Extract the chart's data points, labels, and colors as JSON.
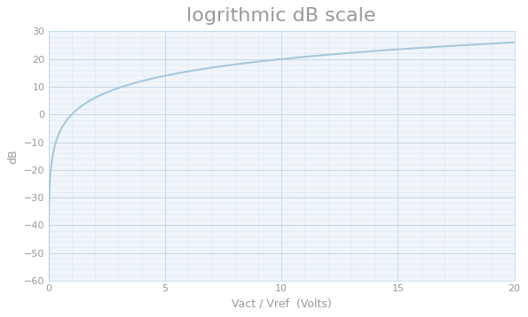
{
  "title": "logrithmic dB scale",
  "xlabel": "Vact / Vref  (Volts)",
  "ylabel": "dB",
  "xlim": [
    0,
    20
  ],
  "ylim": [
    -60,
    30
  ],
  "xticks": [
    0,
    5,
    10,
    15,
    20
  ],
  "yticks": [
    -60,
    -50,
    -40,
    -30,
    -20,
    -10,
    0,
    10,
    20,
    30
  ],
  "line_color": "#a8c8dc",
  "line_width": 1.5,
  "major_grid_color": "#c5d8e8",
  "minor_grid_color": "#dce8f0",
  "major_grid_linewidth": 0.7,
  "minor_grid_linewidth": 0.4,
  "bg_color": "#ffffff",
  "plot_bg_color": "#f0f5fa",
  "title_color": "#999999",
  "label_color": "#999999",
  "tick_color": "#999999",
  "spine_color": "#c5d8e8",
  "title_fontsize": 16,
  "label_fontsize": 9,
  "tick_fontsize": 8,
  "title_fontweight": "light"
}
